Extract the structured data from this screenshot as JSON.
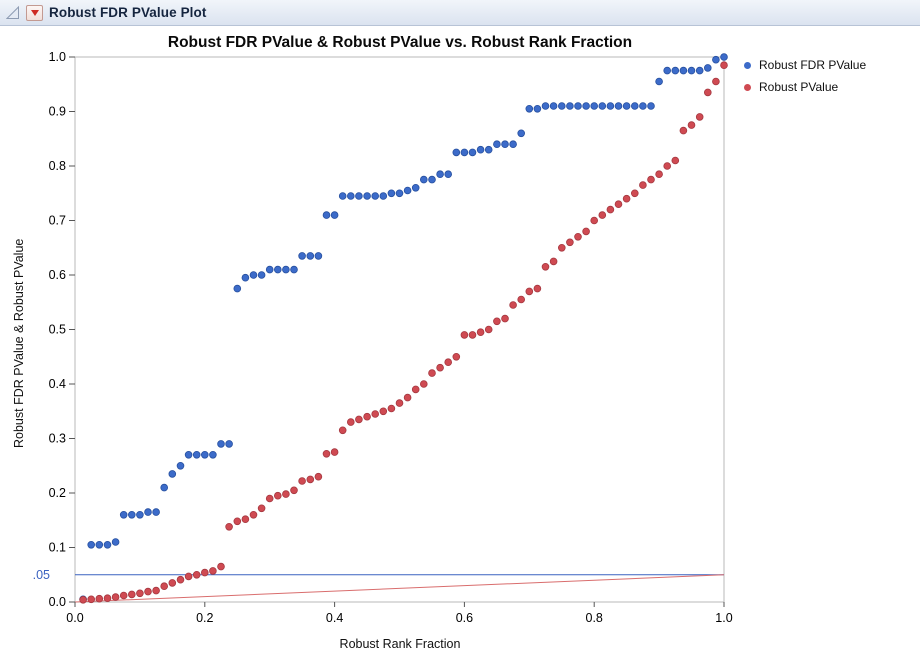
{
  "window": {
    "title": "Robust FDR PValue Plot"
  },
  "legend": {
    "items": [
      {
        "label": "Robust FDR PValue",
        "color": "#3c6bc9"
      },
      {
        "label": "Robust PValue",
        "color": "#cf4a52"
      }
    ]
  },
  "chart_data": {
    "type": "scatter",
    "title": "Robust FDR PValue & Robust PValue vs. Robust Rank Fraction",
    "xlabel": "Robust Rank Fraction",
    "ylabel": "Robust FDR PValue & Robust PValue",
    "xlim": [
      0,
      1
    ],
    "ylim": [
      0,
      1
    ],
    "grid": false,
    "legend_position": "right",
    "x_ticks": [
      0,
      0.2,
      0.4,
      0.6,
      0.8,
      1.0
    ],
    "x_tick_labels": [
      "0.0",
      "0.2",
      "0.4",
      "0.6",
      "0.8",
      "1.0"
    ],
    "y_ticks": [
      0,
      0.1,
      0.2,
      0.3,
      0.4,
      0.5,
      0.6,
      0.7,
      0.8,
      0.9,
      1.0
    ],
    "y_tick_labels": [
      "0.0",
      "0.1",
      "0.2",
      "0.3",
      "0.4",
      "0.5",
      "0.6",
      "0.7",
      "0.8",
      "0.9",
      "1.0"
    ],
    "special_y_label": {
      "text": ".05",
      "value": 0.05,
      "color": "#3a62c0"
    },
    "reference_lines": [
      {
        "name": "alpha-threshold-line",
        "type": "horizontal",
        "y": 0.05,
        "color": "#3a62c0"
      },
      {
        "name": "bh-threshold-line",
        "type": "segment",
        "from": [
          0,
          0
        ],
        "to": [
          1,
          0.05
        ],
        "color": "#d96d6d"
      }
    ],
    "series": [
      {
        "name": "Robust FDR PValue",
        "color": "#3c6bc9",
        "edge": "#27509f",
        "points": [
          [
            0.0125,
            0.005
          ],
          [
            0.025,
            0.105
          ],
          [
            0.0375,
            0.105
          ],
          [
            0.05,
            0.105
          ],
          [
            0.0625,
            0.11
          ],
          [
            0.075,
            0.16
          ],
          [
            0.0875,
            0.16
          ],
          [
            0.1,
            0.16
          ],
          [
            0.1125,
            0.165
          ],
          [
            0.125,
            0.165
          ],
          [
            0.1375,
            0.21
          ],
          [
            0.15,
            0.235
          ],
          [
            0.1625,
            0.25
          ],
          [
            0.175,
            0.27
          ],
          [
            0.1875,
            0.27
          ],
          [
            0.2,
            0.27
          ],
          [
            0.2125,
            0.27
          ],
          [
            0.225,
            0.29
          ],
          [
            0.2375,
            0.29
          ],
          [
            0.25,
            0.575
          ],
          [
            0.2625,
            0.595
          ],
          [
            0.275,
            0.6
          ],
          [
            0.2875,
            0.6
          ],
          [
            0.3,
            0.61
          ],
          [
            0.3125,
            0.61
          ],
          [
            0.325,
            0.61
          ],
          [
            0.3375,
            0.61
          ],
          [
            0.35,
            0.635
          ],
          [
            0.3625,
            0.635
          ],
          [
            0.375,
            0.635
          ],
          [
            0.3875,
            0.71
          ],
          [
            0.4,
            0.71
          ],
          [
            0.4125,
            0.745
          ],
          [
            0.425,
            0.745
          ],
          [
            0.4375,
            0.745
          ],
          [
            0.45,
            0.745
          ],
          [
            0.4625,
            0.745
          ],
          [
            0.475,
            0.745
          ],
          [
            0.4875,
            0.75
          ],
          [
            0.5,
            0.75
          ],
          [
            0.5125,
            0.755
          ],
          [
            0.525,
            0.76
          ],
          [
            0.5375,
            0.775
          ],
          [
            0.55,
            0.775
          ],
          [
            0.5625,
            0.785
          ],
          [
            0.575,
            0.785
          ],
          [
            0.5875,
            0.825
          ],
          [
            0.6,
            0.825
          ],
          [
            0.6125,
            0.825
          ],
          [
            0.625,
            0.83
          ],
          [
            0.6375,
            0.83
          ],
          [
            0.65,
            0.84
          ],
          [
            0.6625,
            0.84
          ],
          [
            0.675,
            0.84
          ],
          [
            0.6875,
            0.86
          ],
          [
            0.7,
            0.905
          ],
          [
            0.7125,
            0.905
          ],
          [
            0.725,
            0.91
          ],
          [
            0.7375,
            0.91
          ],
          [
            0.75,
            0.91
          ],
          [
            0.7625,
            0.91
          ],
          [
            0.775,
            0.91
          ],
          [
            0.7875,
            0.91
          ],
          [
            0.8,
            0.91
          ],
          [
            0.8125,
            0.91
          ],
          [
            0.825,
            0.91
          ],
          [
            0.8375,
            0.91
          ],
          [
            0.85,
            0.91
          ],
          [
            0.8625,
            0.91
          ],
          [
            0.875,
            0.91
          ],
          [
            0.8875,
            0.91
          ],
          [
            0.9,
            0.955
          ],
          [
            0.9125,
            0.975
          ],
          [
            0.925,
            0.975
          ],
          [
            0.9375,
            0.975
          ],
          [
            0.95,
            0.975
          ],
          [
            0.9625,
            0.975
          ],
          [
            0.975,
            0.98
          ],
          [
            0.9875,
            0.995
          ],
          [
            1.0,
            1.0
          ]
        ]
      },
      {
        "name": "Robust PValue",
        "color": "#cf4a52",
        "edge": "#a53840",
        "points": [
          [
            0.0125,
            0.004
          ],
          [
            0.025,
            0.005
          ],
          [
            0.0375,
            0.006
          ],
          [
            0.05,
            0.007
          ],
          [
            0.0625,
            0.009
          ],
          [
            0.075,
            0.012
          ],
          [
            0.0875,
            0.014
          ],
          [
            0.1,
            0.016
          ],
          [
            0.1125,
            0.019
          ],
          [
            0.125,
            0.021
          ],
          [
            0.1375,
            0.029
          ],
          [
            0.15,
            0.035
          ],
          [
            0.1625,
            0.041
          ],
          [
            0.175,
            0.047
          ],
          [
            0.1875,
            0.05
          ],
          [
            0.2,
            0.054
          ],
          [
            0.2125,
            0.057
          ],
          [
            0.225,
            0.065
          ],
          [
            0.2375,
            0.138
          ],
          [
            0.25,
            0.148
          ],
          [
            0.2625,
            0.152
          ],
          [
            0.275,
            0.16
          ],
          [
            0.2875,
            0.172
          ],
          [
            0.3,
            0.19
          ],
          [
            0.3125,
            0.195
          ],
          [
            0.325,
            0.198
          ],
          [
            0.3375,
            0.205
          ],
          [
            0.35,
            0.222
          ],
          [
            0.3625,
            0.225
          ],
          [
            0.375,
            0.23
          ],
          [
            0.3875,
            0.272
          ],
          [
            0.4,
            0.275
          ],
          [
            0.4125,
            0.315
          ],
          [
            0.425,
            0.33
          ],
          [
            0.4375,
            0.335
          ],
          [
            0.45,
            0.34
          ],
          [
            0.4625,
            0.345
          ],
          [
            0.475,
            0.35
          ],
          [
            0.4875,
            0.355
          ],
          [
            0.5,
            0.365
          ],
          [
            0.5125,
            0.375
          ],
          [
            0.525,
            0.39
          ],
          [
            0.5375,
            0.4
          ],
          [
            0.55,
            0.42
          ],
          [
            0.5625,
            0.43
          ],
          [
            0.575,
            0.44
          ],
          [
            0.5875,
            0.45
          ],
          [
            0.6,
            0.49
          ],
          [
            0.6125,
            0.49
          ],
          [
            0.625,
            0.495
          ],
          [
            0.6375,
            0.5
          ],
          [
            0.65,
            0.515
          ],
          [
            0.6625,
            0.52
          ],
          [
            0.675,
            0.545
          ],
          [
            0.6875,
            0.555
          ],
          [
            0.7,
            0.57
          ],
          [
            0.7125,
            0.575
          ],
          [
            0.725,
            0.615
          ],
          [
            0.7375,
            0.625
          ],
          [
            0.75,
            0.65
          ],
          [
            0.7625,
            0.66
          ],
          [
            0.775,
            0.67
          ],
          [
            0.7875,
            0.68
          ],
          [
            0.8,
            0.7
          ],
          [
            0.8125,
            0.71
          ],
          [
            0.825,
            0.72
          ],
          [
            0.8375,
            0.73
          ],
          [
            0.85,
            0.74
          ],
          [
            0.8625,
            0.75
          ],
          [
            0.875,
            0.765
          ],
          [
            0.8875,
            0.775
          ],
          [
            0.9,
            0.785
          ],
          [
            0.9125,
            0.8
          ],
          [
            0.925,
            0.81
          ],
          [
            0.9375,
            0.865
          ],
          [
            0.95,
            0.875
          ],
          [
            0.9625,
            0.89
          ],
          [
            0.975,
            0.935
          ],
          [
            0.9875,
            0.955
          ],
          [
            1.0,
            0.985
          ]
        ]
      }
    ]
  }
}
